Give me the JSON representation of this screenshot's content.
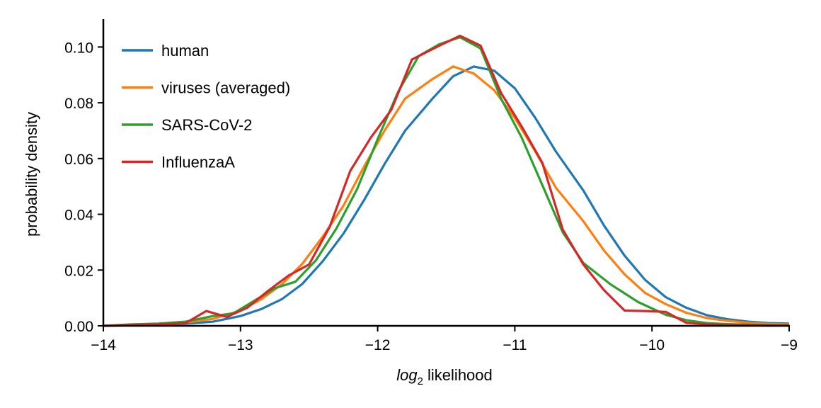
{
  "chart_data": {
    "type": "line",
    "title": "",
    "xlabel_italic": "log",
    "xlabel_sub": "2",
    "xlabel_rest": " likelihood",
    "ylabel": "probability density",
    "xlim": [
      -14,
      -9
    ],
    "ylim": [
      0,
      0.11
    ],
    "xticks": [
      -14,
      -13,
      -12,
      -11,
      -10,
      -9
    ],
    "xtick_labels": [
      "−14",
      "−13",
      "−12",
      "−11",
      "−10",
      "−9"
    ],
    "yticks": [
      0.0,
      0.02,
      0.04,
      0.06,
      0.08,
      0.1
    ],
    "ytick_labels": [
      "0.00",
      "0.02",
      "0.04",
      "0.06",
      "0.08",
      "0.10"
    ],
    "grid": false,
    "legend_position": "top-left",
    "series": [
      {
        "name": "human",
        "color": "#1f77b4",
        "x": [
          -14.0,
          -13.8,
          -13.6,
          -13.4,
          -13.2,
          -13.0,
          -12.85,
          -12.7,
          -12.55,
          -12.4,
          -12.25,
          -12.1,
          -11.95,
          -11.8,
          -11.6,
          -11.45,
          -11.3,
          -11.15,
          -11.0,
          -10.85,
          -10.7,
          -10.5,
          -10.35,
          -10.2,
          -10.05,
          -9.9,
          -9.75,
          -9.6,
          -9.45,
          -9.3,
          -9.15,
          -9.0
        ],
        "y": [
          0.0,
          0.0002,
          0.0005,
          0.0008,
          0.0015,
          0.0035,
          0.006,
          0.0095,
          0.015,
          0.0232,
          0.033,
          0.045,
          0.058,
          0.07,
          0.0815,
          0.0895,
          0.093,
          0.0915,
          0.0852,
          0.0745,
          0.0625,
          0.0485,
          0.036,
          0.0252,
          0.0165,
          0.0103,
          0.0065,
          0.0038,
          0.0024,
          0.0015,
          0.001,
          0.0008
        ]
      },
      {
        "name": "viruses (averaged)",
        "color": "#ff7f0e",
        "x": [
          -14.0,
          -13.8,
          -13.6,
          -13.4,
          -13.2,
          -13.0,
          -12.85,
          -12.7,
          -12.55,
          -12.4,
          -12.25,
          -12.1,
          -11.95,
          -11.8,
          -11.6,
          -11.45,
          -11.3,
          -11.15,
          -11.0,
          -10.85,
          -10.7,
          -10.5,
          -10.35,
          -10.2,
          -10.05,
          -9.9,
          -9.75,
          -9.6,
          -9.45,
          -9.3,
          -9.15,
          -9.0
        ],
        "y": [
          0.0,
          0.0003,
          0.0006,
          0.0012,
          0.0025,
          0.0055,
          0.0095,
          0.0148,
          0.0222,
          0.032,
          0.043,
          0.057,
          0.07,
          0.0815,
          0.0885,
          0.093,
          0.0905,
          0.0845,
          0.0745,
          0.0625,
          0.0495,
          0.0375,
          0.027,
          0.0185,
          0.0118,
          0.0078,
          0.0047,
          0.0028,
          0.0018,
          0.0011,
          0.0007,
          0.0005
        ]
      },
      {
        "name": "SARS-CoV-2",
        "color": "#2ca02c",
        "x": [
          -14.0,
          -13.8,
          -13.6,
          -13.4,
          -13.2,
          -13.05,
          -12.9,
          -12.75,
          -12.6,
          -12.45,
          -12.3,
          -12.15,
          -12.0,
          -11.85,
          -11.7,
          -11.55,
          -11.4,
          -11.25,
          -11.1,
          -10.95,
          -10.8,
          -10.65,
          -10.5,
          -10.3,
          -10.1,
          -9.9,
          -9.75,
          -9.6,
          -9.45,
          -9.3,
          -9.15,
          -9.0
        ],
        "y": [
          0.0,
          0.0005,
          0.0008,
          0.0015,
          0.0035,
          0.0045,
          0.009,
          0.0135,
          0.0158,
          0.0235,
          0.035,
          0.049,
          0.067,
          0.084,
          0.0968,
          0.101,
          0.1035,
          0.0995,
          0.0815,
          0.0675,
          0.0505,
          0.0335,
          0.0225,
          0.0148,
          0.0085,
          0.004,
          0.002,
          0.001,
          0.0006,
          0.0004,
          0.0003,
          0.0002
        ]
      },
      {
        "name": "InfluenzaA",
        "color": "#d62728",
        "x": [
          -14.0,
          -13.8,
          -13.6,
          -13.4,
          -13.25,
          -13.1,
          -12.95,
          -12.8,
          -12.65,
          -12.5,
          -12.35,
          -12.2,
          -12.05,
          -11.9,
          -11.75,
          -11.55,
          -11.4,
          -11.25,
          -11.1,
          -10.95,
          -10.8,
          -10.65,
          -10.5,
          -10.35,
          -10.2,
          -10.05,
          -9.9,
          -9.75,
          -9.6,
          -9.45,
          -9.3,
          -9.15,
          -9.0
        ],
        "y": [
          0.0,
          0.0003,
          0.0005,
          0.001,
          0.0053,
          0.0032,
          0.0065,
          0.0125,
          0.018,
          0.022,
          0.0355,
          0.0555,
          0.0675,
          0.0775,
          0.0955,
          0.1005,
          0.104,
          0.1005,
          0.0835,
          0.0715,
          0.0585,
          0.0345,
          0.022,
          0.0128,
          0.0055,
          0.0053,
          0.005,
          0.0011,
          0.0005,
          0.0003,
          0.0002,
          0.0001,
          0.0001
        ]
      }
    ]
  }
}
